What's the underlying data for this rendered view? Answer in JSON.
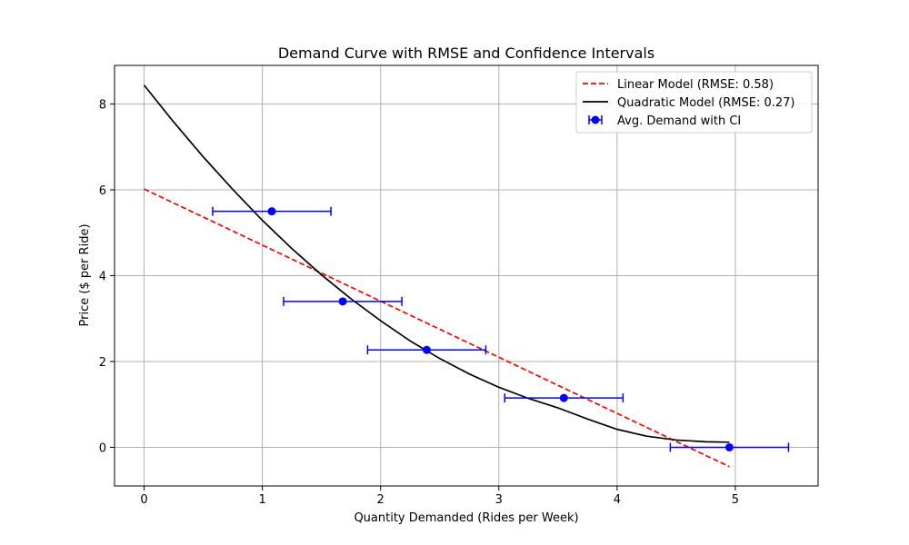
{
  "chart_data": {
    "type": "scatter",
    "title": "Demand Curve with RMSE and Confidence Intervals",
    "xlabel": "Quantity Demanded (Rides per Week)",
    "ylabel": "Price ($ per Ride)",
    "xlim": [
      -0.25,
      5.7
    ],
    "ylim": [
      -0.9,
      8.9
    ],
    "xticks": [
      0,
      1,
      2,
      3,
      4,
      5
    ],
    "yticks": [
      0,
      2,
      4,
      6,
      8
    ],
    "grid": true,
    "legend_position": "top-right",
    "series": [
      {
        "name": "Linear Model (RMSE: 0.58)",
        "kind": "line",
        "style": "dashed",
        "color": "#ff0000",
        "x": [
          0,
          4.95
        ],
        "y": [
          6.02,
          -0.45
        ]
      },
      {
        "name": "Quadratic Model (RMSE: 0.27)",
        "kind": "line",
        "style": "solid",
        "color": "#000000",
        "x": [
          0,
          0.25,
          0.5,
          0.75,
          1.0,
          1.25,
          1.5,
          1.75,
          2.0,
          2.25,
          2.5,
          2.75,
          3.0,
          3.25,
          3.5,
          3.75,
          4.0,
          4.25,
          4.5,
          4.75,
          4.95
        ],
        "y": [
          8.44,
          7.58,
          6.77,
          6.01,
          5.29,
          4.63,
          4.02,
          3.46,
          2.95,
          2.48,
          2.07,
          1.71,
          1.4,
          1.14,
          0.92,
          0.66,
          0.42,
          0.26,
          0.17,
          0.13,
          0.12
        ]
      },
      {
        "name": "Avg. Demand with CI",
        "kind": "errorbar",
        "color": "#0000ff",
        "x": [
          1.08,
          1.68,
          2.39,
          3.55,
          4.95
        ],
        "y": [
          5.5,
          3.4,
          2.27,
          1.15,
          0.0
        ],
        "xerr": [
          0.5,
          0.5,
          0.5,
          0.5,
          0.5
        ]
      }
    ]
  }
}
